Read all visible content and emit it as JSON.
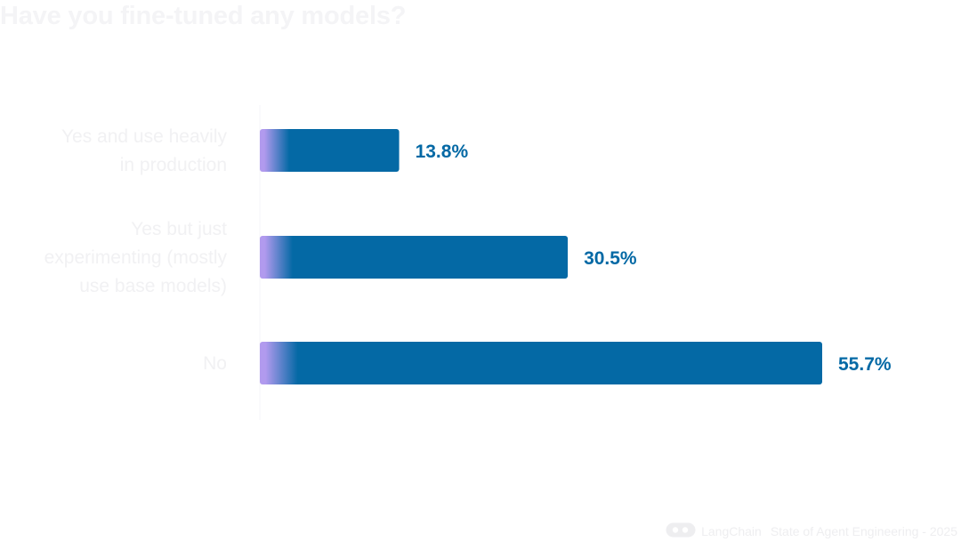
{
  "chart_data": {
    "type": "bar",
    "orientation": "horizontal",
    "title": "Have you fine-tuned any models?",
    "categories": [
      [
        "Yes and use heavily",
        "in production"
      ],
      [
        "Yes but just",
        "experimenting (mostly",
        "use base models)"
      ],
      [
        "No"
      ]
    ],
    "values": [
      13.8,
      30.5,
      55.7
    ],
    "value_labels": [
      "13.8%",
      "30.5%",
      "55.7%"
    ],
    "unit": "%",
    "xlim": [
      0,
      55.7
    ],
    "grid": false,
    "legend": "none"
  },
  "colors": {
    "bar": "#0469a5",
    "bar_gradient_start": "#b19aee",
    "value_label": "#0469a5",
    "category_label": "#f1f1f3",
    "title": "#f4f4f6",
    "footer": "#eeeef0"
  },
  "footer": {
    "logo_icon": "langchain-logo-icon",
    "brand": "LangChain",
    "caption": "State of Agent Engineering - 2025"
  }
}
